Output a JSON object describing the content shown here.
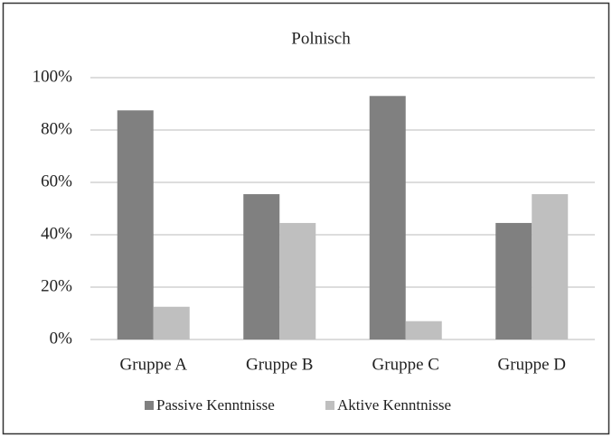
{
  "chart_data": {
    "type": "bar",
    "title": "Polnisch",
    "categories": [
      "Gruppe A",
      "Gruppe B",
      "Gruppe C",
      "Gruppe D"
    ],
    "series": [
      {
        "name": "Passive Kenntnisse",
        "color": "#808080",
        "values": [
          87.5,
          55.5,
          93,
          44.5
        ]
      },
      {
        "name": "Aktive Kenntnisse",
        "color": "#bfbfbf",
        "values": [
          12.5,
          44.5,
          7,
          55.5
        ]
      }
    ],
    "ylim": [
      0,
      100
    ],
    "yticks": [
      {
        "value": 0,
        "label": "0%"
      },
      {
        "value": 20,
        "label": "20%"
      },
      {
        "value": 40,
        "label": "40%"
      },
      {
        "value": 60,
        "label": "60%"
      },
      {
        "value": 80,
        "label": "80%"
      },
      {
        "value": 100,
        "label": "100%"
      }
    ],
    "grid": true,
    "legend": "bottom"
  }
}
